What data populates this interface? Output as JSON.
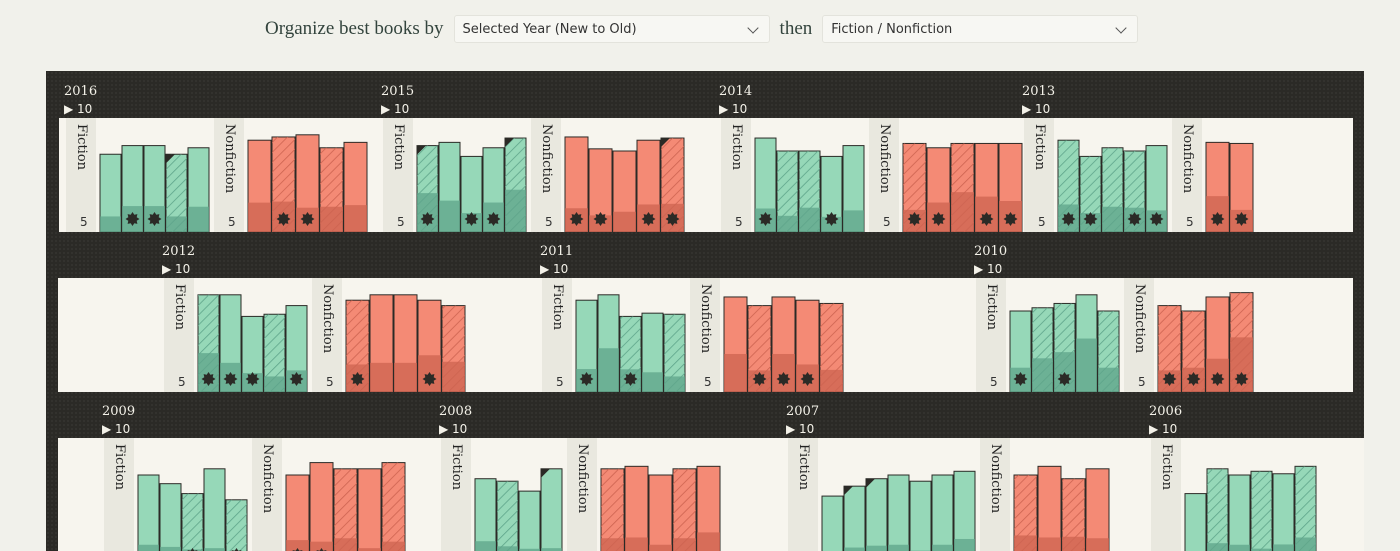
{
  "controls": {
    "label_organize": "Organize best books by",
    "primary_select": "Selected Year (New to Old)",
    "label_then": "then",
    "secondary_select": "Fiction / Nonfiction"
  },
  "palette": {
    "fiction": "#96d8b8",
    "fiction_dark": "#5ea48a",
    "nonfiction": "#f48a75",
    "nonfiction_dark": "#cd6350",
    "shelf": "#2b2a26",
    "paper": "#f7f5ee"
  },
  "labels": {
    "fiction": "Fiction",
    "nonfiction": "Nonfiction",
    "scale_mark": "5",
    "count_arrow": "▶ 10"
  },
  "years": [
    {
      "year": "2016",
      "row": 0,
      "fiction": {
        "heights": [
          0.72,
          0.8,
          0.8,
          0.72,
          0.78
        ],
        "lower": [
          0.2,
          0.3,
          0.3,
          0.2,
          0.3
        ],
        "hatch": [
          false,
          false,
          false,
          true,
          false
        ],
        "stars": [
          1,
          2
        ],
        "corner": [
          3
        ]
      },
      "nonfiction": {
        "heights": [
          0.85,
          0.88,
          0.9,
          0.78,
          0.83
        ],
        "lower": [
          0.32,
          0.32,
          0.25,
          0.3,
          0.3
        ],
        "hatch": [
          false,
          true,
          false,
          true,
          false
        ],
        "stars": [
          1,
          2
        ],
        "corner": []
      }
    },
    {
      "year": "2015",
      "row": 0,
      "fiction": {
        "heights": [
          0.8,
          0.83,
          0.7,
          0.78,
          0.87
        ],
        "lower": [
          0.45,
          0.35,
          0.25,
          0.35,
          0.45
        ],
        "hatch": [
          true,
          false,
          false,
          false,
          true
        ],
        "stars": [
          0,
          2,
          3
        ],
        "corner": [
          0,
          4
        ]
      },
      "nonfiction": {
        "heights": [
          0.88,
          0.77,
          0.75,
          0.85,
          0.87
        ],
        "lower": [
          0.25,
          0.2,
          0.25,
          0.3,
          0.3
        ],
        "hatch": [
          false,
          false,
          false,
          false,
          true
        ],
        "stars": [
          0,
          1,
          3,
          4
        ],
        "corner": [
          4
        ]
      }
    },
    {
      "year": "2014",
      "row": 0,
      "fiction": {
        "heights": [
          0.87,
          0.75,
          0.75,
          0.7,
          0.8
        ],
        "lower": [
          0.25,
          0.2,
          0.3,
          0.2,
          0.25
        ],
        "hatch": [
          false,
          true,
          true,
          false,
          false
        ],
        "stars": [
          0,
          3
        ],
        "corner": []
      },
      "nonfiction": {
        "heights": [
          0.82,
          0.78,
          0.82,
          0.82,
          0.82
        ],
        "lower": [
          0.25,
          0.35,
          0.45,
          0.4,
          0.35
        ],
        "hatch": [
          true,
          false,
          true,
          false,
          false
        ],
        "stars": [
          0,
          1,
          3,
          4
        ],
        "corner": []
      }
    },
    {
      "year": "2013",
      "row": 0,
      "fiction": {
        "heights": [
          0.85,
          0.7,
          0.78,
          0.75,
          0.8
        ],
        "lower": [
          0.3,
          0.25,
          0.3,
          0.3,
          0.25
        ],
        "hatch": [
          true,
          true,
          true,
          true,
          false
        ],
        "stars": [
          0,
          1,
          3,
          4
        ],
        "corner": []
      },
      "nonfiction": {
        "heights": [
          0.83,
          0.82
        ],
        "lower": [
          0.4,
          0.25
        ],
        "hatch": [
          false,
          false
        ],
        "stars": [
          0,
          1
        ],
        "corner": []
      }
    },
    {
      "year": "2012",
      "row": 1,
      "fiction": {
        "heights": [
          0.9,
          0.9,
          0.7,
          0.72,
          0.8
        ],
        "lower": [
          0.4,
          0.3,
          0.25,
          0.2,
          0.25
        ],
        "hatch": [
          true,
          false,
          false,
          true,
          false
        ],
        "stars": [
          0,
          1,
          2,
          4
        ],
        "corner": []
      },
      "nonfiction": {
        "heights": [
          0.85,
          0.9,
          0.9,
          0.85,
          0.8
        ],
        "lower": [
          0.3,
          0.3,
          0.3,
          0.4,
          0.35
        ],
        "hatch": [
          true,
          false,
          false,
          false,
          true
        ],
        "stars": [
          0,
          3
        ],
        "corner": []
      }
    },
    {
      "year": "2011",
      "row": 1,
      "fiction": {
        "heights": [
          0.85,
          0.9,
          0.7,
          0.73,
          0.72
        ],
        "lower": [
          0.25,
          0.45,
          0.3,
          0.25,
          0.2
        ],
        "hatch": [
          false,
          false,
          true,
          false,
          true
        ],
        "stars": [
          0,
          2
        ],
        "corner": []
      },
      "nonfiction": {
        "heights": [
          0.88,
          0.8,
          0.88,
          0.85,
          0.82
        ],
        "lower": [
          0.4,
          0.25,
          0.4,
          0.3,
          0.25
        ],
        "hatch": [
          false,
          true,
          false,
          false,
          true
        ],
        "stars": [
          1,
          2,
          3
        ],
        "corner": []
      }
    },
    {
      "year": "2010",
      "row": 1,
      "fiction": {
        "heights": [
          0.75,
          0.78,
          0.82,
          0.9,
          0.75
        ],
        "lower": [
          0.3,
          0.4,
          0.45,
          0.55,
          0.3
        ],
        "hatch": [
          false,
          true,
          true,
          false,
          true
        ],
        "stars": [
          0,
          2
        ],
        "corner": []
      },
      "nonfiction": {
        "heights": [
          0.8,
          0.75,
          0.88,
          0.92
        ],
        "lower": [
          0.25,
          0.3,
          0.35,
          0.55
        ],
        "hatch": [
          true,
          true,
          false,
          true
        ],
        "stars": [
          0,
          1,
          2,
          3
        ],
        "corner": []
      }
    },
    {
      "year": "2009",
      "row": 2,
      "fiction": {
        "heights": [
          0.75,
          0.68,
          0.6,
          0.8,
          0.55
        ],
        "lower": [
          0.25,
          0.25,
          0.25,
          0.2,
          0.2
        ],
        "hatch": [
          false,
          false,
          true,
          false,
          true
        ],
        "stars": [
          2,
          4
        ],
        "corner": []
      },
      "nonfiction": {
        "heights": [
          0.75,
          0.85,
          0.8,
          0.8,
          0.85
        ],
        "lower": [
          0.3,
          0.25,
          0.3,
          0.2,
          0.25
        ],
        "hatch": [
          false,
          false,
          true,
          false,
          true
        ],
        "stars": [
          0,
          1
        ],
        "corner": []
      }
    },
    {
      "year": "2008",
      "row": 2,
      "fiction": {
        "heights": [
          0.72,
          0.7,
          0.62,
          0.8
        ],
        "lower": [
          0.3,
          0.25,
          0.25,
          0.2
        ],
        "hatch": [
          false,
          true,
          false,
          false
        ],
        "stars": [],
        "corner": [
          3
        ]
      },
      "nonfiction": {
        "heights": [
          0.8,
          0.82,
          0.75,
          0.8,
          0.82
        ],
        "lower": [
          0.3,
          0.3,
          0.25,
          0.3,
          0.35
        ],
        "hatch": [
          true,
          false,
          false,
          true,
          false
        ],
        "stars": [],
        "corner": []
      }
    },
    {
      "year": "2007",
      "row": 2,
      "fiction": {
        "heights": [
          0.58,
          0.66,
          0.72,
          0.75,
          0.7,
          0.75,
          0.78
        ],
        "lower": [
          0.2,
          0.25,
          0.25,
          0.25,
          0.2,
          0.25,
          0.3
        ],
        "hatch": [
          false,
          false,
          false,
          false,
          false,
          false,
          false
        ],
        "stars": [],
        "corner": [
          1,
          2
        ]
      },
      "nonfiction": {
        "heights": [
          0.75,
          0.82,
          0.72,
          0.8
        ],
        "lower": [
          0.35,
          0.3,
          0.35,
          0.3
        ],
        "hatch": [
          true,
          false,
          true,
          false
        ],
        "stars": [],
        "corner": []
      }
    },
    {
      "year": "2006",
      "row": 2,
      "fiction": {
        "heights": [
          0.6,
          0.8,
          0.75,
          0.78,
          0.76,
          0.82
        ],
        "lower": [
          0.2,
          0.25,
          0.25,
          0.2,
          0.25,
          0.3
        ],
        "hatch": [
          false,
          true,
          false,
          true,
          false,
          true
        ],
        "stars": [],
        "corner": []
      },
      "nonfiction": {
        "heights": [],
        "lower": [],
        "hatch": [],
        "stars": [],
        "corner": []
      }
    }
  ]
}
